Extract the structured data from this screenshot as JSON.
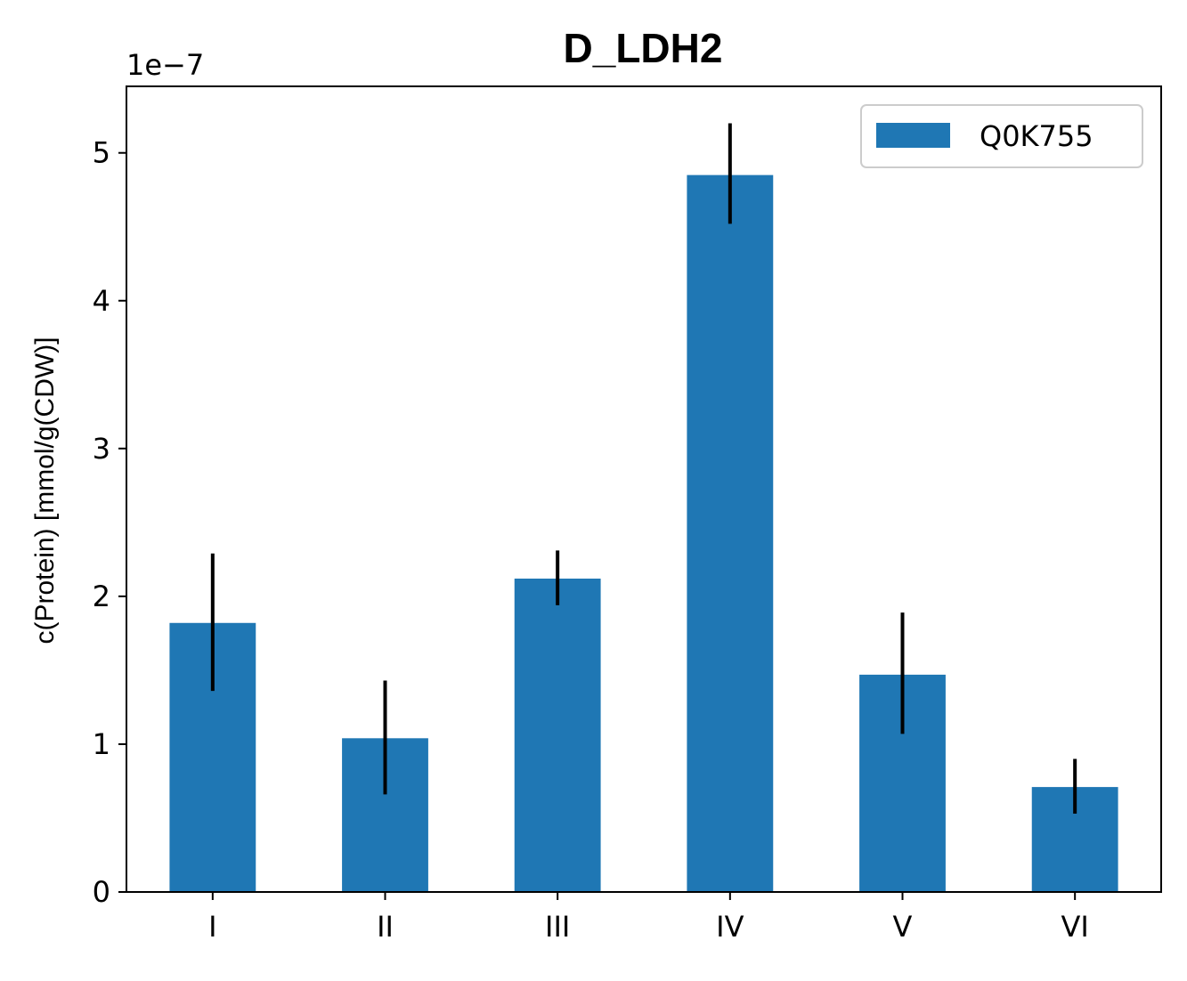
{
  "chart_data": {
    "type": "bar",
    "title": "D_LDH2",
    "ylabel": "c(Protein) [mmol/g(CDW)]",
    "xlabel": "",
    "y_offset_label": "1e−7",
    "y_scale": 1e-07,
    "ylim": [
      0,
      5.45
    ],
    "yticks": [
      0,
      1,
      2,
      3,
      4,
      5
    ],
    "categories": [
      "I",
      "II",
      "III",
      "IV",
      "V",
      "VI"
    ],
    "series": [
      {
        "name": "Q0K755",
        "color": "#1f77b4",
        "values": [
          1.82,
          1.04,
          2.12,
          4.85,
          1.47,
          0.71
        ],
        "error_low": [
          1.36,
          0.66,
          1.94,
          4.52,
          1.07,
          0.53
        ],
        "error_high": [
          2.29,
          1.43,
          2.31,
          5.2,
          1.89,
          0.9
        ]
      }
    ],
    "legend_position": "upper right",
    "grid": false
  }
}
